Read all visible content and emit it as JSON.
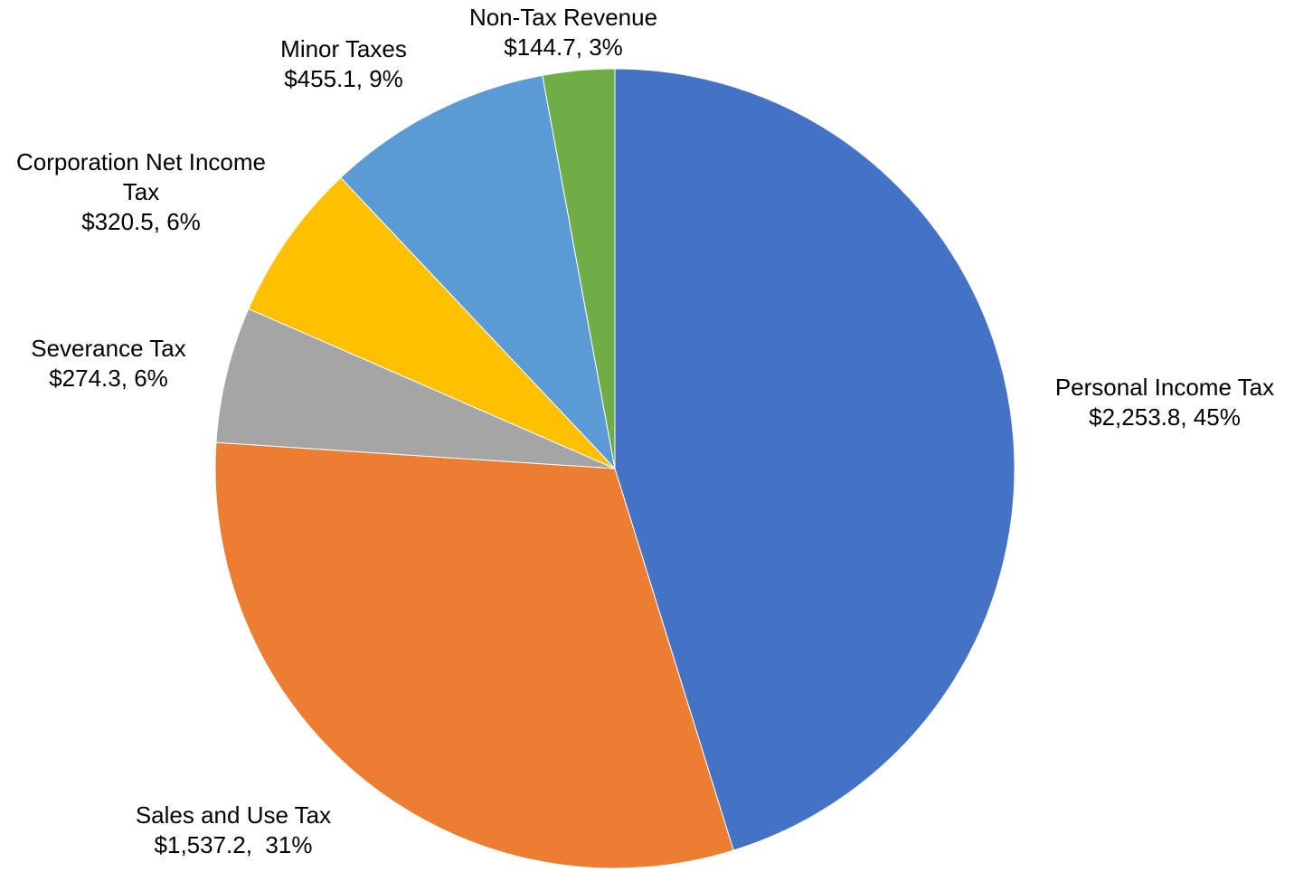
{
  "chart_data": {
    "type": "pie",
    "slices": [
      {
        "name": "Personal Income Tax",
        "value": 2253.8,
        "percent": 45,
        "label_lines": [
          "Personal Income Tax",
          "$2,253.8, 45%"
        ],
        "color": "#4472C4"
      },
      {
        "name": "Sales and Use Tax",
        "value": 1537.2,
        "percent": 31,
        "label_lines": [
          "Sales and Use Tax",
          "$1,537.2,  31%"
        ],
        "color": "#ED7D31"
      },
      {
        "name": "Severance Tax",
        "value": 274.3,
        "percent": 6,
        "label_lines": [
          "Severance Tax",
          "$274.3, 6%"
        ],
        "color": "#A5A5A5"
      },
      {
        "name": "Corporation Net Income Tax",
        "value": 320.5,
        "percent": 6,
        "label_lines": [
          "Corporation Net Income",
          "Tax",
          "$320.5, 6%"
        ],
        "color": "#FFC000"
      },
      {
        "name": "Minor Taxes",
        "value": 455.1,
        "percent": 9,
        "label_lines": [
          "Minor Taxes",
          "$455.1, 9%"
        ],
        "color": "#5B9BD5"
      },
      {
        "name": "Non-Tax Revenue",
        "value": 144.7,
        "percent": 3,
        "label_lines": [
          "Non-Tax Revenue",
          "$144.7, 3%"
        ],
        "color": "#70AD47"
      }
    ],
    "start": "12 o'clock",
    "direction": "clockwise",
    "legend": "none"
  }
}
